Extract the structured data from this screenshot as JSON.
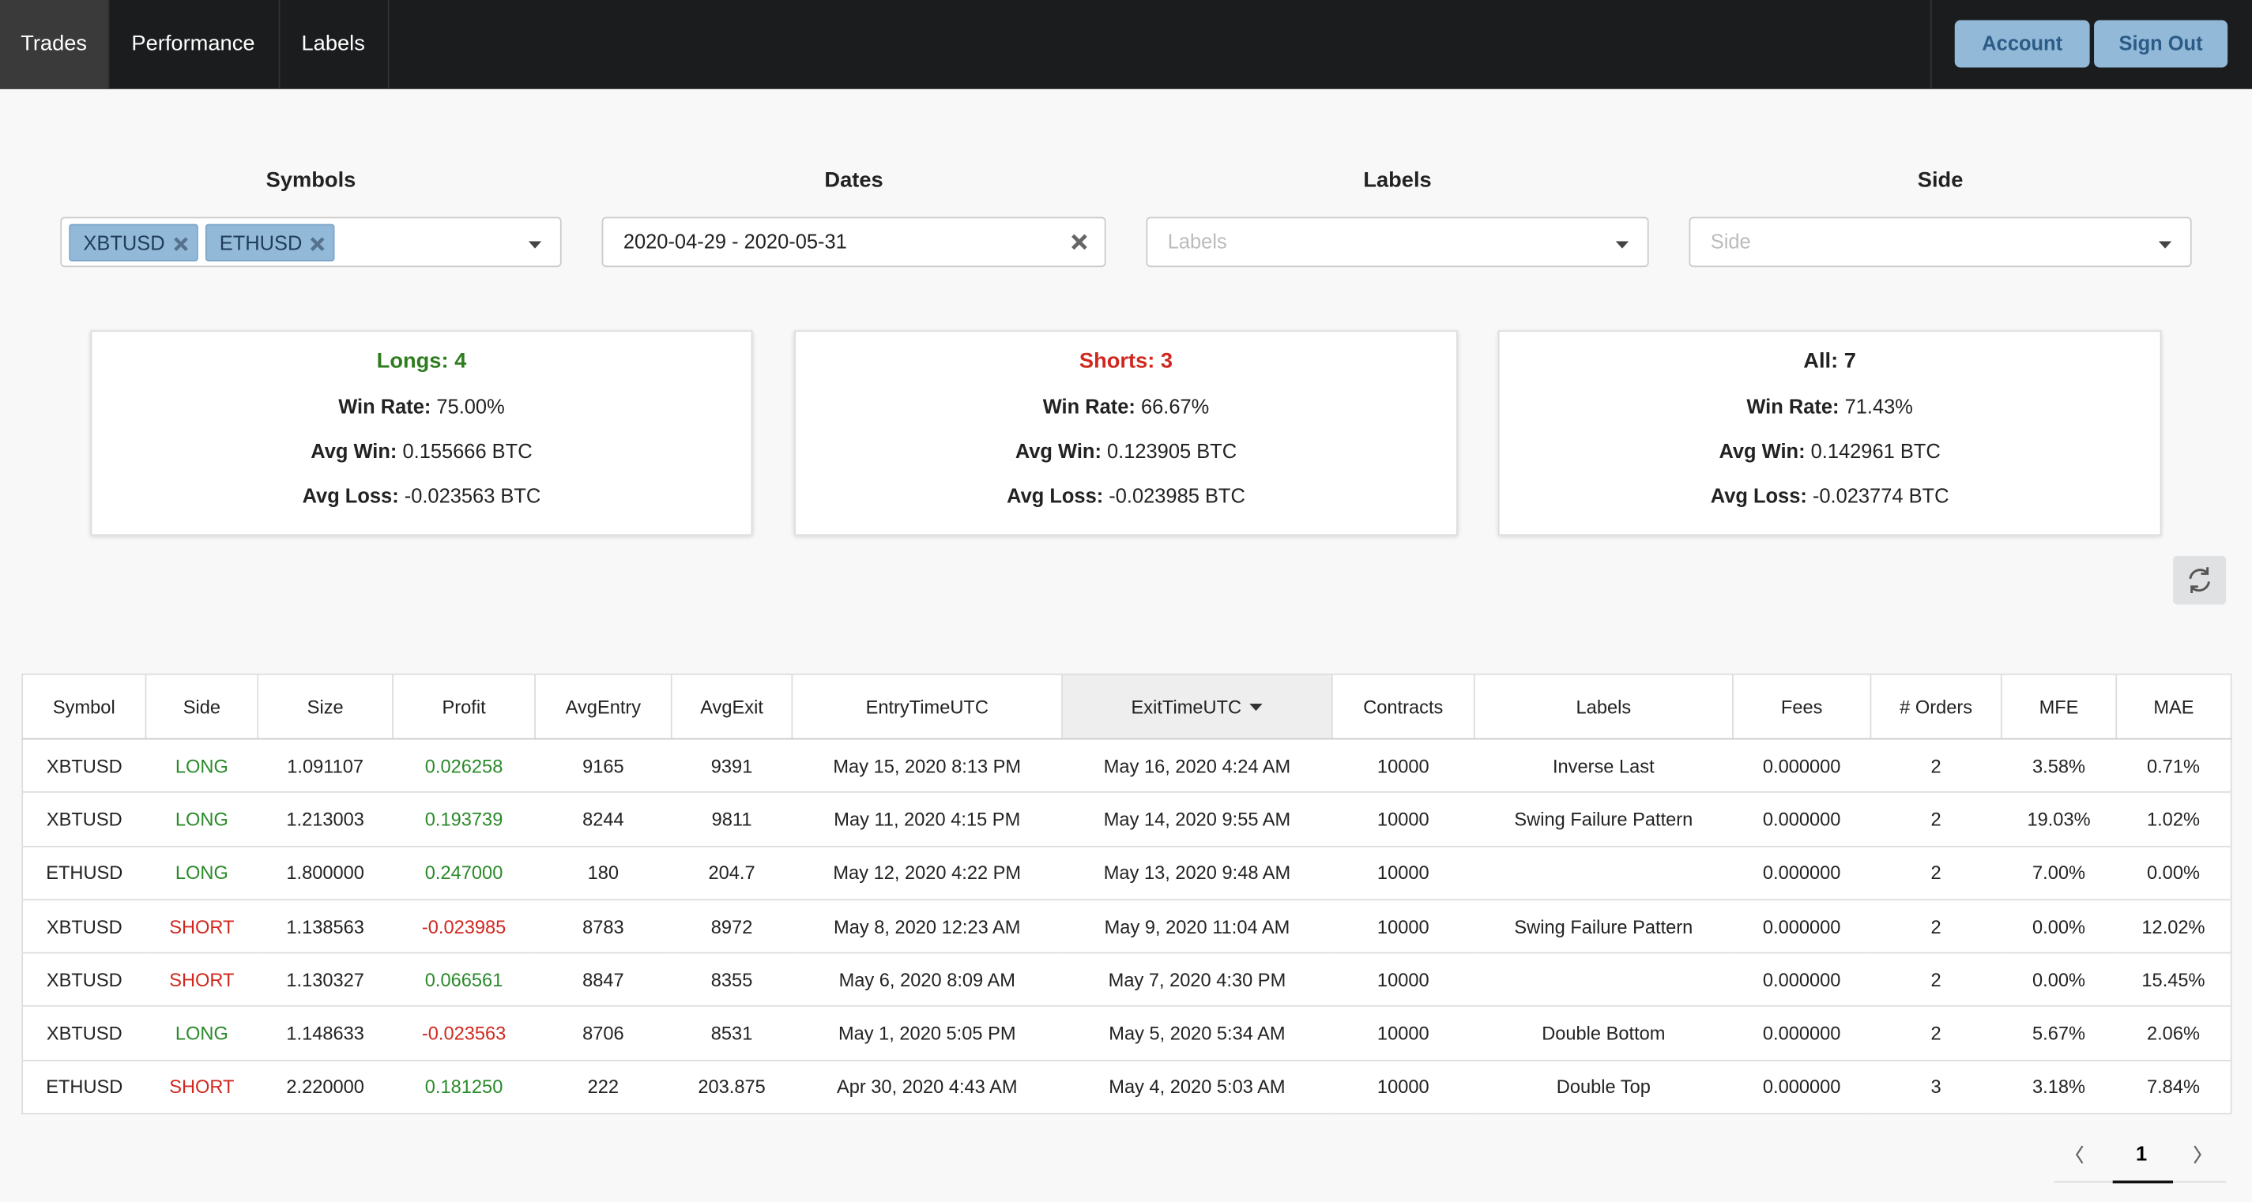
{
  "nav": {
    "tabs": [
      "Trades",
      "Performance",
      "Labels"
    ],
    "buttons": [
      "Account",
      "Sign Out"
    ]
  },
  "filters": [
    {
      "label": "Symbols",
      "tags": [
        "XBTUSD",
        "ETHUSD"
      ]
    },
    {
      "label": "Dates",
      "value": "2020-04-29 - 2020-05-31"
    },
    {
      "label": "Labels",
      "placeholder": "Labels"
    },
    {
      "label": "Side",
      "placeholder": "Side"
    }
  ],
  "stats": [
    {
      "title": "Longs: 4",
      "rows": [
        {
          "label": "Win Rate:",
          "value": "75.00%"
        },
        {
          "label": "Avg Win:",
          "value": "0.155666 BTC"
        },
        {
          "label": "Avg Loss:",
          "value": "-0.023563 BTC"
        }
      ]
    },
    {
      "title": "Shorts: 3",
      "rows": [
        {
          "label": "Win Rate:",
          "value": "66.67%"
        },
        {
          "label": "Avg Win:",
          "value": "0.123905 BTC"
        },
        {
          "label": "Avg Loss:",
          "value": "-0.023985 BTC"
        }
      ]
    },
    {
      "title": "All: 7",
      "rows": [
        {
          "label": "Win Rate:",
          "value": "71.43%"
        },
        {
          "label": "Avg Win:",
          "value": "0.142961 BTC"
        },
        {
          "label": "Avg Loss:",
          "value": "-0.023774 BTC"
        }
      ]
    }
  ],
  "table": {
    "headers": [
      "Symbol",
      "Side",
      "Size",
      "Profit",
      "AvgEntry",
      "AvgExit",
      "EntryTimeUTC",
      "ExitTimeUTC",
      "Contracts",
      "Labels",
      "Fees",
      "# Orders",
      "MFE",
      "MAE"
    ],
    "rows": [
      [
        "XBTUSD",
        "LONG",
        "1.091107",
        "0.026258",
        "9165",
        "9391",
        "May 15, 2020 8:13 PM",
        "May 16, 2020 4:24 AM",
        "10000",
        "Inverse Last",
        "0.000000",
        "2",
        "3.58%",
        "0.71%"
      ],
      [
        "XBTUSD",
        "LONG",
        "1.213003",
        "0.193739",
        "8244",
        "9811",
        "May 11, 2020 4:15 PM",
        "May 14, 2020 9:55 AM",
        "10000",
        "Swing Failure Pattern",
        "0.000000",
        "2",
        "19.03%",
        "1.02%"
      ],
      [
        "ETHUSD",
        "LONG",
        "1.800000",
        "0.247000",
        "180",
        "204.7",
        "May 12, 2020 4:22 PM",
        "May 13, 2020 9:48 AM",
        "10000",
        "",
        "0.000000",
        "2",
        "7.00%",
        "0.00%"
      ],
      [
        "XBTUSD",
        "SHORT",
        "1.138563",
        "-0.023985",
        "8783",
        "8972",
        "May 8, 2020 12:23 AM",
        "May 9, 2020 11:04 AM",
        "10000",
        "Swing Failure Pattern",
        "0.000000",
        "2",
        "0.00%",
        "12.02%"
      ],
      [
        "XBTUSD",
        "SHORT",
        "1.130327",
        "0.066561",
        "8847",
        "8355",
        "May 6, 2020 8:09 AM",
        "May 7, 2020 4:30 PM",
        "10000",
        "",
        "0.000000",
        "2",
        "0.00%",
        "15.45%"
      ],
      [
        "XBTUSD",
        "LONG",
        "1.148633",
        "-0.023563",
        "8706",
        "8531",
        "May 1, 2020 5:05 PM",
        "May 5, 2020 5:34 AM",
        "10000",
        "Double Bottom",
        "0.000000",
        "2",
        "5.67%",
        "2.06%"
      ],
      [
        "ETHUSD",
        "SHORT",
        "2.220000",
        "0.181250",
        "222",
        "203.875",
        "Apr 30, 2020 4:43 AM",
        "May 4, 2020 5:03 AM",
        "10000",
        "Double Top",
        "0.000000",
        "3",
        "3.18%",
        "7.84%"
      ]
    ]
  },
  "pagination": {
    "page": "1"
  }
}
